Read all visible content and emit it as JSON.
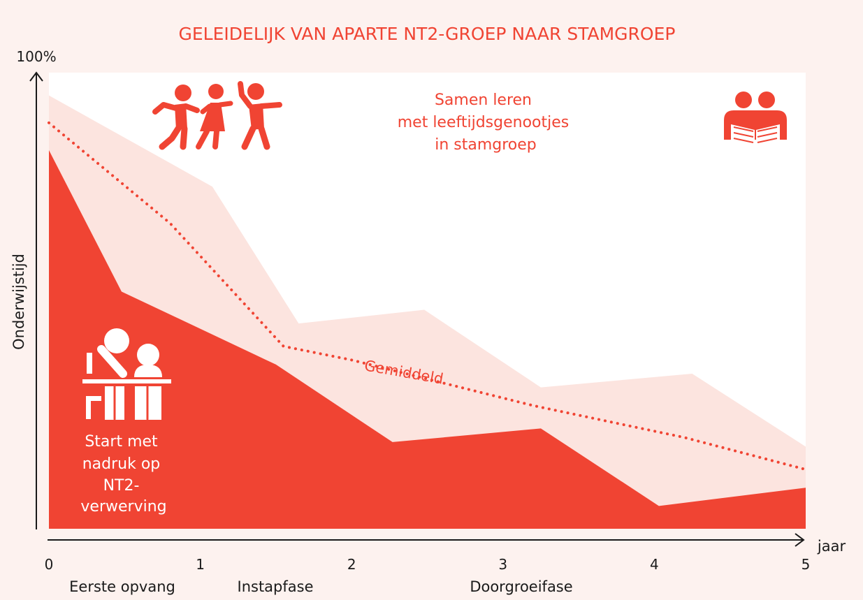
{
  "chart_data": {
    "type": "area",
    "title": "GELEIDELIJK VAN APARTE NT2-GROEP NAAR STAMGROEP",
    "ylabel": "Onderwijstijd",
    "xlabel": "jaar",
    "y_top_label": "100%",
    "xlim": [
      0,
      5
    ],
    "ylim": [
      0,
      100
    ],
    "x_ticks": [
      "0",
      "1",
      "2",
      "3",
      "4",
      "5"
    ],
    "phases": [
      "Eerste opvang",
      "Instapfase",
      "Doorgroeifase"
    ],
    "series": [
      {
        "role": "light-band-upper",
        "x": [
          0,
          1.08,
          1.65,
          2.48,
          3.25,
          4.25,
          5
        ],
        "values": [
          95,
          75,
          45,
          48,
          31,
          34,
          18
        ]
      },
      {
        "role": "dark-area-upper",
        "x": [
          0,
          0.48,
          1.5,
          2.27,
          3.25,
          4.03,
          5
        ],
        "values": [
          83,
          52,
          36,
          19,
          22,
          5,
          9
        ]
      },
      {
        "name": "Gemiddeld",
        "style": "dotted",
        "x": [
          0,
          0.8,
          1.55,
          2.0,
          3.2,
          4.2,
          5
        ],
        "values": [
          89,
          67,
          40,
          37,
          27,
          20,
          13
        ]
      }
    ],
    "annotations": {
      "top": [
        "Samen leren",
        "met leeftijdsgenootjes",
        "in stamgroep"
      ],
      "bottom": [
        "Start met",
        "nadruk op",
        "NT2-",
        "verwerving"
      ]
    },
    "colors": {
      "dark": "#f04433",
      "light": "#fce4df",
      "plot_bg": "#ffffff",
      "page_bg": "#fdf2ef",
      "text": "#f04433",
      "axis": "#1a1a1a"
    }
  },
  "icons": [
    "running-children-icon",
    "reading-pair-icon",
    "desk-learners-icon"
  ]
}
